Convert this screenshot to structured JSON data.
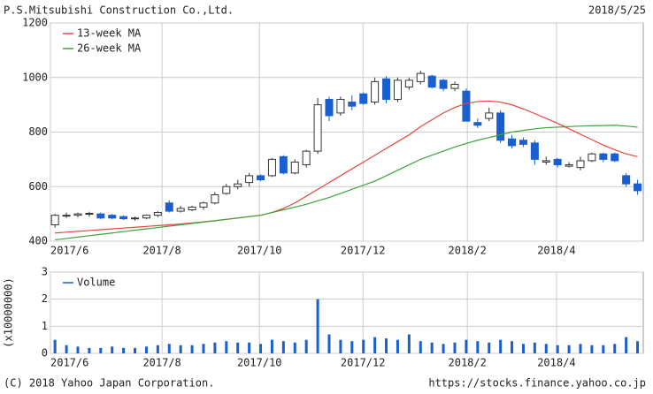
{
  "header": {
    "title": "P.S.Mitsubishi Construction Co.,Ltd.",
    "date": "2018/5/25"
  },
  "chart_data": [
    {
      "type": "candlestick",
      "x": [
        0,
        1,
        2,
        3,
        4,
        5,
        6,
        7,
        8,
        9,
        10,
        11,
        12,
        13,
        14,
        15,
        16,
        17,
        18,
        19,
        20,
        21,
        22,
        23,
        24,
        25,
        26,
        27,
        28,
        29,
        30,
        31,
        32,
        33,
        34,
        35,
        36,
        37,
        38,
        39,
        40,
        41,
        42,
        43,
        44,
        45,
        46,
        47,
        48,
        49,
        50,
        51
      ],
      "open": [
        460,
        495,
        495,
        500,
        500,
        495,
        490,
        482,
        485,
        495,
        540,
        510,
        515,
        525,
        540,
        575,
        600,
        615,
        640,
        640,
        710,
        650,
        680,
        730,
        920,
        870,
        910,
        940,
        910,
        995,
        920,
        965,
        985,
        1005,
        990,
        960,
        950,
        835,
        850,
        870,
        775,
        770,
        760,
        690,
        700,
        675,
        670,
        695,
        720,
        720,
        640,
        610
      ],
      "high": [
        500,
        505,
        505,
        508,
        505,
        500,
        495,
        490,
        498,
        510,
        550,
        530,
        530,
        545,
        580,
        610,
        625,
        650,
        645,
        705,
        715,
        700,
        735,
        925,
        930,
        930,
        935,
        945,
        1000,
        1005,
        1000,
        1000,
        1025,
        1010,
        995,
        985,
        960,
        850,
        890,
        880,
        790,
        780,
        770,
        710,
        705,
        690,
        710,
        725,
        725,
        725,
        650,
        625
      ],
      "low": [
        450,
        485,
        488,
        490,
        480,
        480,
        478,
        475,
        480,
        488,
        505,
        505,
        510,
        515,
        535,
        570,
        590,
        600,
        620,
        635,
        645,
        645,
        670,
        720,
        840,
        860,
        880,
        900,
        900,
        905,
        910,
        955,
        975,
        960,
        950,
        950,
        840,
        815,
        840,
        760,
        740,
        745,
        680,
        680,
        670,
        670,
        660,
        690,
        690,
        690,
        600,
        570
      ],
      "close": [
        495,
        495,
        500,
        502,
        485,
        485,
        482,
        485,
        495,
        505,
        510,
        520,
        525,
        540,
        570,
        600,
        610,
        640,
        625,
        700,
        650,
        690,
        730,
        900,
        860,
        920,
        895,
        905,
        985,
        920,
        990,
        990,
        1015,
        965,
        960,
        975,
        840,
        825,
        870,
        770,
        750,
        755,
        700,
        695,
        680,
        680,
        695,
        720,
        700,
        695,
        610,
        585
      ],
      "up_color": "#ffffff",
      "down_color": "#1a5fd0",
      "series": [
        {
          "name": "13-week MA",
          "color": "#e8463a",
          "values": [
            430,
            433,
            436,
            439,
            442,
            445,
            448,
            451,
            454,
            457,
            460,
            463,
            467,
            471,
            475,
            480,
            485,
            490,
            495,
            505,
            520,
            540,
            565,
            590,
            615,
            640,
            665,
            690,
            715,
            740,
            765,
            790,
            820,
            845,
            870,
            890,
            905,
            912,
            914,
            910,
            900,
            885,
            868,
            850,
            832,
            812,
            792,
            772,
            752,
            735,
            720,
            710
          ]
        },
        {
          "name": "26-week MA",
          "color": "#3ca43c",
          "values": [
            405,
            410,
            415,
            420,
            425,
            430,
            435,
            440,
            445,
            450,
            455,
            460,
            465,
            470,
            475,
            480,
            485,
            490,
            495,
            505,
            515,
            525,
            535,
            548,
            560,
            575,
            590,
            605,
            620,
            640,
            660,
            680,
            700,
            715,
            730,
            745,
            758,
            770,
            780,
            790,
            800,
            806,
            812,
            816,
            818,
            820,
            822,
            823,
            824,
            825,
            822,
            818
          ]
        }
      ],
      "xlim": [
        -0.4,
        51.5
      ],
      "xticks": [
        {
          "value": -0.4,
          "label": "2017/6"
        },
        {
          "value": 9.37,
          "label": "2017/8"
        },
        {
          "value": 17.9,
          "label": "2017/10"
        },
        {
          "value": 26.96,
          "label": "2017/12"
        },
        {
          "value": 36.1,
          "label": "2018/2"
        },
        {
          "value": 43.9,
          "label": "2018/4"
        }
      ],
      "ylim": [
        400,
        1200
      ],
      "yticks": [
        400,
        600,
        800,
        1000,
        1200
      ],
      "grid": true,
      "legend": "upper left"
    },
    {
      "type": "bar",
      "x": [
        0,
        1,
        2,
        3,
        4,
        5,
        6,
        7,
        8,
        9,
        10,
        11,
        12,
        13,
        14,
        15,
        16,
        17,
        18,
        19,
        20,
        21,
        22,
        23,
        24,
        25,
        26,
        27,
        28,
        29,
        30,
        31,
        32,
        33,
        34,
        35,
        36,
        37,
        38,
        39,
        40,
        41,
        42,
        43,
        44,
        45,
        46,
        47,
        48,
        49,
        50,
        51
      ],
      "series": [
        {
          "name": "Volume",
          "color": "#1a5fd0",
          "values": [
            0.5,
            0.3,
            0.25,
            0.2,
            0.2,
            0.25,
            0.2,
            0.2,
            0.25,
            0.3,
            0.35,
            0.3,
            0.3,
            0.35,
            0.4,
            0.45,
            0.4,
            0.4,
            0.35,
            0.5,
            0.45,
            0.4,
            0.5,
            2.0,
            0.7,
            0.5,
            0.45,
            0.5,
            0.6,
            0.55,
            0.5,
            0.7,
            0.45,
            0.4,
            0.35,
            0.4,
            0.5,
            0.45,
            0.4,
            0.5,
            0.45,
            0.35,
            0.4,
            0.35,
            0.3,
            0.3,
            0.35,
            0.3,
            0.3,
            0.35,
            0.6,
            0.45
          ]
        }
      ],
      "y_label": "(x10000000)",
      "xlim": [
        -0.4,
        51.5
      ],
      "xticks": [
        {
          "value": -0.4,
          "label": "2017/6"
        },
        {
          "value": 9.37,
          "label": "2017/8"
        },
        {
          "value": 17.9,
          "label": "2017/10"
        },
        {
          "value": 26.96,
          "label": "2017/12"
        },
        {
          "value": 36.1,
          "label": "2018/2"
        },
        {
          "value": 43.9,
          "label": "2018/4"
        }
      ],
      "ylim": [
        0,
        3
      ],
      "yticks": [
        0,
        1,
        2,
        3
      ],
      "grid": true,
      "legend": "upper left"
    }
  ],
  "footer": {
    "copyright": "(C) 2018 Yahoo Japan Corporation.",
    "url": "https://stocks.finance.yahoo.co.jp"
  }
}
